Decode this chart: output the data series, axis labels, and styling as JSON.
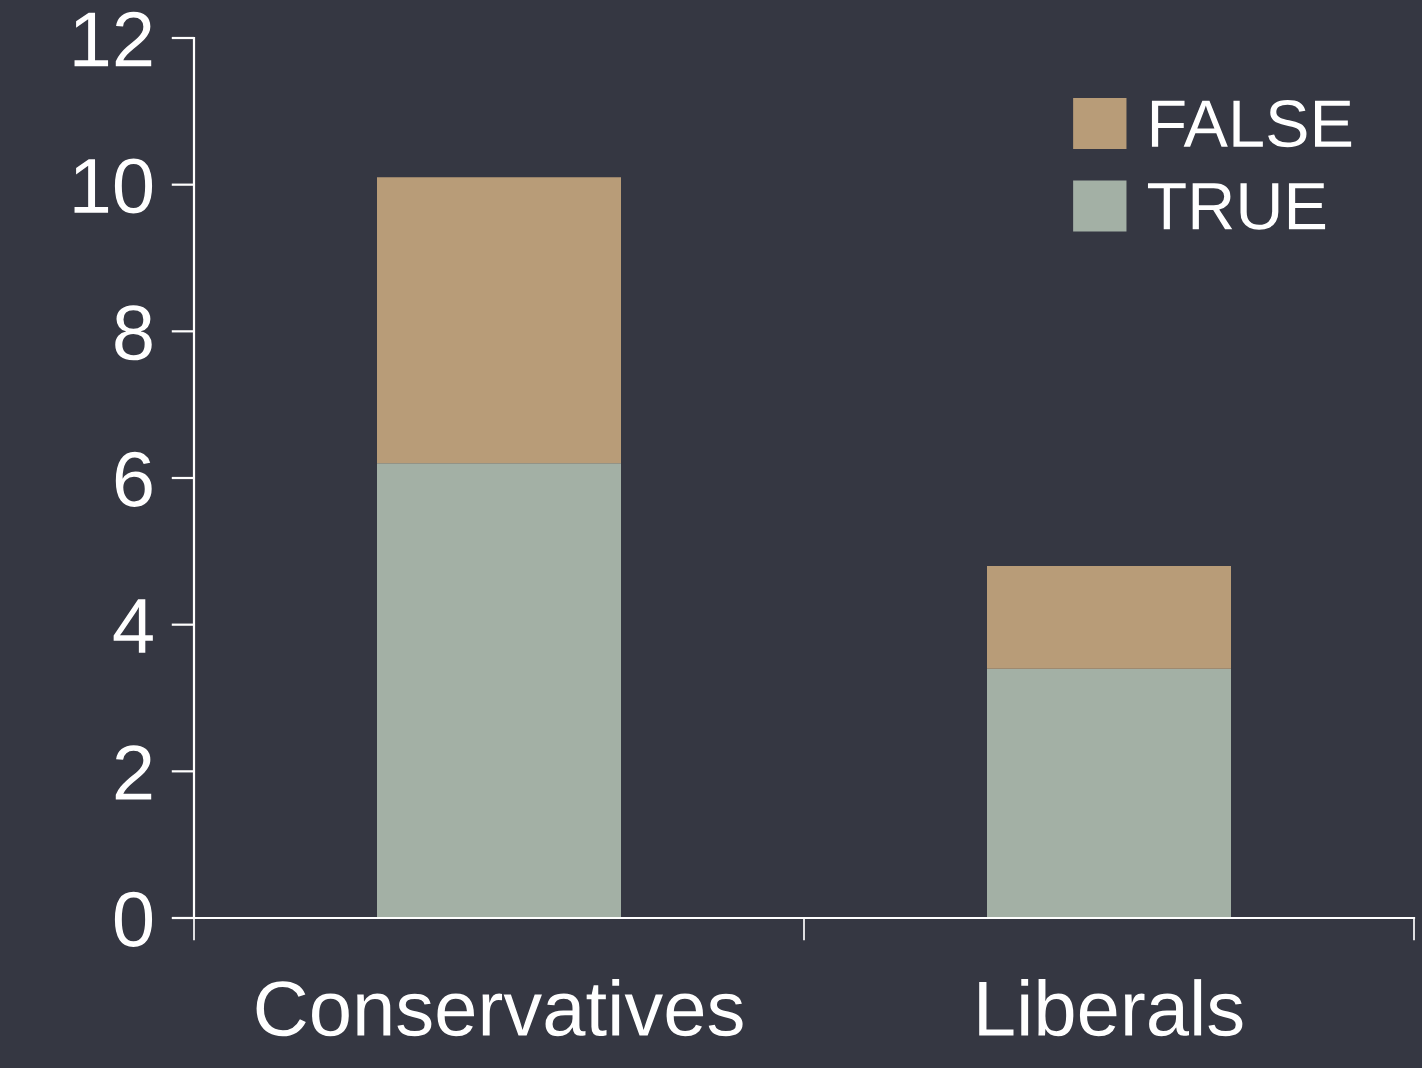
{
  "chart_data": {
    "type": "bar",
    "stacked": true,
    "categories": [
      "Conservatives",
      "Liberals"
    ],
    "series": [
      {
        "name": "TRUE",
        "color": "#a3b0a5",
        "values": [
          6.2,
          3.4
        ]
      },
      {
        "name": "FALSE",
        "color": "#b89c78",
        "values": [
          3.9,
          1.4
        ]
      }
    ],
    "ylim": [
      0,
      12
    ],
    "yticks": [
      0,
      2,
      4,
      6,
      8,
      10,
      12
    ],
    "grid": false,
    "legend": "top right"
  }
}
